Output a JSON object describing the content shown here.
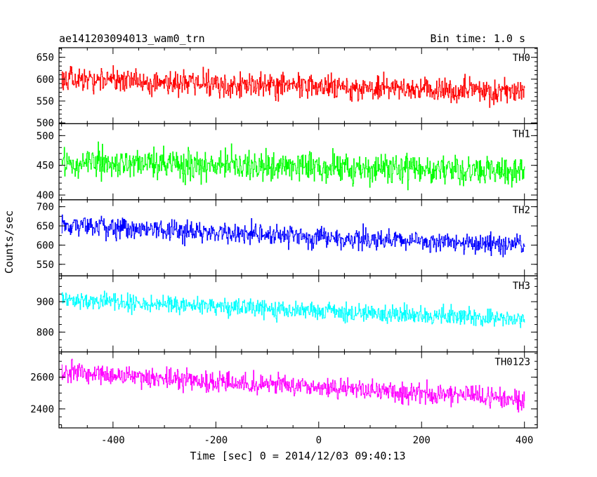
{
  "header": {
    "title": "ae141203094013_wam0_trn",
    "bin_time": "Bin time: 1.0 s"
  },
  "chart_data": {
    "type": "line",
    "title": "ae141203094013_wam0_trn",
    "subtitle": "Bin time: 1.0 s",
    "xlabel": "Time [sec] 0 = 2014/12/03 09:40:13",
    "ylabel": "Counts/sec",
    "xlim": [
      -505,
      425
    ],
    "x_ticks": [
      -400,
      -200,
      0,
      200,
      400
    ],
    "x_range": [
      -500,
      400
    ],
    "bin_seconds": 1.0,
    "grid": false,
    "panels": [
      {
        "name": "TH0",
        "color": "#ff0000",
        "ylim": [
          498,
          672
        ],
        "y_ticks": [
          500,
          550,
          600,
          650
        ],
        "start_mean": 600,
        "end_mean": 570,
        "spread": 40
      },
      {
        "name": "TH1",
        "color": "#00ff00",
        "ylim": [
          392,
          520
        ],
        "y_ticks": [
          400,
          450,
          500
        ],
        "start_mean": 455,
        "end_mean": 440,
        "spread": 34
      },
      {
        "name": "TH2",
        "color": "#0000ff",
        "ylim": [
          520,
          718
        ],
        "y_ticks": [
          550,
          600,
          650,
          700
        ],
        "start_mean": 650,
        "end_mean": 600,
        "spread": 38
      },
      {
        "name": "TH3",
        "color": "#00ffff",
        "ylim": [
          735,
          985
        ],
        "y_ticks": [
          800,
          900
        ],
        "start_mean": 905,
        "end_mean": 840,
        "spread": 42
      },
      {
        "name": "TH0123",
        "color": "#ff00ff",
        "ylim": [
          2280,
          2760
        ],
        "y_ticks": [
          2400,
          2600
        ],
        "start_mean": 2630,
        "end_mean": 2460,
        "spread": 90
      }
    ]
  }
}
